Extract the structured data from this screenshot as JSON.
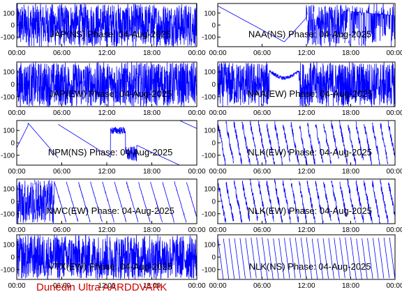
{
  "footer": "Dunedin Ultra AARDDVARK",
  "chart_data": {
    "type": "line",
    "series_color": "#0000ff",
    "x_ticks": [
      "00:00",
      "06:00",
      "12:00",
      "18:00",
      "00:00"
    ],
    "y_ticks": [
      100,
      0,
      -100
    ],
    "ylim": [
      -180,
      180
    ],
    "xlim_hours": [
      0,
      24
    ],
    "panels": [
      {
        "title": "JAP(NS) Phase: 04-Aug-2025",
        "pattern": "dense",
        "params": {}
      },
      {
        "title": "NAA(NS) Phase: 04-Aug-2025",
        "pattern": "nsdrift",
        "params": {}
      },
      {
        "title": "JAP(EW) Phase: 04-Aug-2025",
        "pattern": "dense",
        "params": {}
      },
      {
        "title": "NAA(EW) Phase: 04-Aug-2025",
        "pattern": "ewdense",
        "params": {}
      },
      {
        "title": "NPM(NS) Phase: 04-Aug-2025",
        "pattern": "npm",
        "params": {}
      },
      {
        "title": "NLK(EW) Phase: 04-Aug-2025",
        "pattern": "sawnoisy",
        "params": {
          "period": 1.1
        }
      },
      {
        "title": "NWC(EW) Phase: 04-Aug-2025",
        "pattern": "nwc",
        "params": {
          "period": 1.6
        }
      },
      {
        "title": "NLK(EW) Phase: 04-Aug-2025",
        "pattern": "sawnoisy",
        "params": {
          "period": 1.1
        }
      },
      {
        "title": "VTX(EW) Phase: 04-Aug-2025",
        "pattern": "vtx",
        "params": {}
      },
      {
        "title": "NLK(NS) Phase: 04-Aug-2025",
        "pattern": "saw",
        "params": {
          "period": 0.75
        }
      }
    ]
  }
}
